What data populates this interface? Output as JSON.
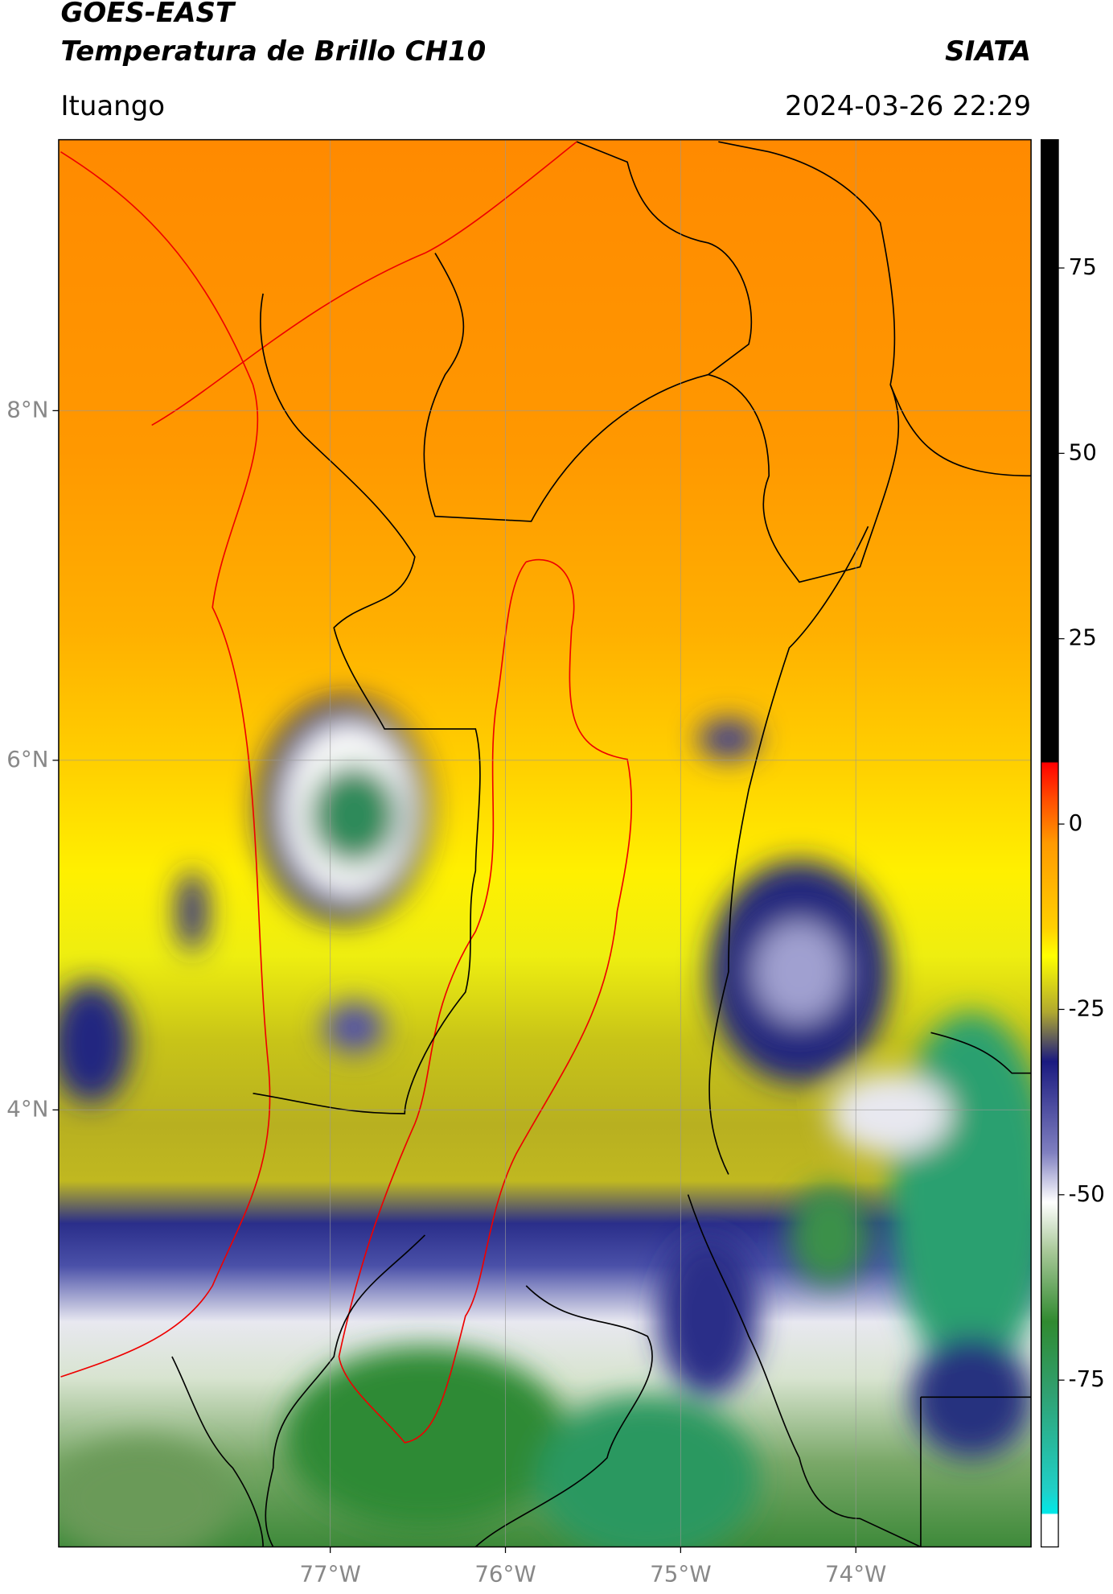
{
  "header": {
    "title_line1": "GOES-EAST",
    "title_line2": "Temperatura de Brillo CH10",
    "source": "SIATA",
    "region": "Ituango",
    "datetime": "2024-03-26 22:29"
  },
  "map": {
    "xlim": [
      -78.55,
      -73.0
    ],
    "ylim": [
      1.5,
      9.55
    ],
    "xticks": [
      {
        "value": -77,
        "label": "77°W"
      },
      {
        "value": -76,
        "label": "76°W"
      },
      {
        "value": -75,
        "label": "75°W"
      },
      {
        "value": -74,
        "label": "74°W"
      }
    ],
    "yticks": [
      {
        "value": 8,
        "label": "8°N"
      },
      {
        "value": 6,
        "label": "6°N"
      },
      {
        "value": 4,
        "label": "4°N"
      }
    ],
    "grid": true
  },
  "colorbar": {
    "lim": [
      -97.5,
      92.3
    ],
    "ticks": [
      75,
      50,
      25,
      0,
      -25,
      -50,
      -75
    ]
  }
}
